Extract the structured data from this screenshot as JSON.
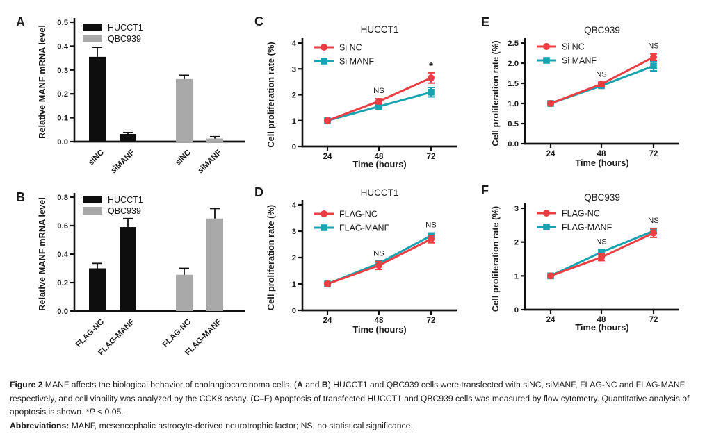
{
  "figure_label": "Figure 2",
  "chart_data": [
    {
      "id": "A",
      "panel_label": "A",
      "type": "bar",
      "ylabel": "Relative  MANF mRNA level",
      "ylim": [
        0,
        0.5
      ],
      "yticks": [
        "0.0",
        "0.1",
        "0.2",
        "0.3",
        "0.4",
        "0.5"
      ],
      "categories": [
        "siNC",
        "siMANF",
        "siNC",
        "siMANF"
      ],
      "legend": [
        {
          "label": "HUCCT1",
          "color": "#0e0e0e"
        },
        {
          "label": "QBC939",
          "color": "#a9a9a9"
        }
      ],
      "bars": [
        {
          "group": "HUCCT1",
          "category": "siNC",
          "value": 0.355,
          "error": 0.04,
          "color": "#0e0e0e"
        },
        {
          "group": "HUCCT1",
          "category": "siMANF",
          "value": 0.032,
          "error": 0.006,
          "color": "#0e0e0e"
        },
        {
          "group": "QBC939",
          "category": "siNC",
          "value": 0.262,
          "error": 0.016,
          "color": "#a9a9a9"
        },
        {
          "group": "QBC939",
          "category": "siMANF",
          "value": 0.013,
          "error": 0.008,
          "color": "#a9a9a9"
        }
      ]
    },
    {
      "id": "B",
      "panel_label": "B",
      "type": "bar",
      "ylabel": "Relative  MANF mRNA level",
      "ylim": [
        0,
        0.8
      ],
      "yticks": [
        "0.0",
        "0.2",
        "0.4",
        "0.6",
        "0.8"
      ],
      "categories": [
        "FLAG-NC",
        "FLAG-MANF",
        "FLAG-NC",
        "FLAG-MANF"
      ],
      "legend": [
        {
          "label": "HUCCT1",
          "color": "#0e0e0e"
        },
        {
          "label": "QBC939",
          "color": "#a9a9a9"
        }
      ],
      "bars": [
        {
          "group": "HUCCT1",
          "category": "FLAG-NC",
          "value": 0.3,
          "error": 0.035,
          "color": "#0e0e0e"
        },
        {
          "group": "HUCCT1",
          "category": "FLAG-MANF",
          "value": 0.59,
          "error": 0.06,
          "color": "#0e0e0e"
        },
        {
          "group": "QBC939",
          "category": "FLAG-NC",
          "value": 0.255,
          "error": 0.045,
          "color": "#a9a9a9"
        },
        {
          "group": "QBC939",
          "category": "FLAG-MANF",
          "value": 0.65,
          "error": 0.07,
          "color": "#a9a9a9"
        }
      ]
    },
    {
      "id": "C",
      "panel_label": "C",
      "type": "line",
      "title": "HUCCT1",
      "ylabel": "Cell proliferation rate (%)",
      "xlabel": "Time (hours)",
      "ylim": [
        0,
        4
      ],
      "yticks": [
        "0",
        "1",
        "2",
        "3",
        "4"
      ],
      "x": [
        24,
        48,
        72
      ],
      "series": [
        {
          "name": "Si NC",
          "color": "#ea3e43",
          "marker": "circle",
          "values": [
            1.0,
            1.75,
            2.65
          ],
          "errors": [
            0.03,
            0.1,
            0.2
          ]
        },
        {
          "name": "Si MANF",
          "color": "#17a3b0",
          "marker": "square",
          "values": [
            1.0,
            1.55,
            2.1
          ],
          "errors": [
            0.03,
            0.06,
            0.18
          ]
        }
      ],
      "annotations": [
        {
          "x_index": 1,
          "text": "NS"
        },
        {
          "x_index": 2,
          "text": "*"
        }
      ]
    },
    {
      "id": "D",
      "panel_label": "D",
      "type": "line",
      "title": "HUCCT1",
      "ylabel": "Cell proliferation rate (%)",
      "xlabel": "Time (hours)",
      "ylim": [
        0,
        4
      ],
      "yticks": [
        "0",
        "1",
        "2",
        "3",
        "4"
      ],
      "x": [
        24,
        48,
        72
      ],
      "series": [
        {
          "name": "FLAG-NC",
          "color": "#ea3e43",
          "marker": "circle",
          "values": [
            1.0,
            1.7,
            2.7
          ],
          "errors": [
            0.03,
            0.15,
            0.14
          ]
        },
        {
          "name": "FLAG-MANF",
          "color": "#17a3b0",
          "marker": "square",
          "values": [
            1.0,
            1.78,
            2.83
          ],
          "errors": [
            0.03,
            0.08,
            0.1
          ]
        }
      ],
      "annotations": [
        {
          "x_index": 1,
          "text": "NS"
        },
        {
          "x_index": 2,
          "text": "NS"
        }
      ]
    },
    {
      "id": "E",
      "panel_label": "E",
      "type": "line",
      "title": "QBC939",
      "ylabel": "Cell proliferation rate (%)",
      "xlabel": "Time (hours)",
      "ylim": [
        0,
        2.5
      ],
      "yticks": [
        "0.0",
        "0.5",
        "1.0",
        "1.5",
        "2.0",
        "2.5"
      ],
      "x": [
        24,
        48,
        72
      ],
      "series": [
        {
          "name": "Si NC",
          "color": "#ea3e43",
          "marker": "circle",
          "values": [
            1.0,
            1.48,
            2.15
          ],
          "errors": [
            0.02,
            0.05,
            0.08
          ]
        },
        {
          "name": "Si MANF",
          "color": "#17a3b0",
          "marker": "square",
          "values": [
            1.0,
            1.44,
            1.93
          ],
          "errors": [
            0.02,
            0.04,
            0.12
          ]
        }
      ],
      "annotations": [
        {
          "x_index": 1,
          "text": "NS"
        },
        {
          "x_index": 2,
          "text": "NS"
        }
      ]
    },
    {
      "id": "F",
      "panel_label": "F",
      "type": "line",
      "title": "QBC939",
      "ylabel": "Cell proliferation rate (%)",
      "xlabel": "Time (hours)",
      "ylim": [
        0,
        3
      ],
      "yticks": [
        "0",
        "1",
        "2",
        "3"
      ],
      "x": [
        24,
        48,
        72
      ],
      "series": [
        {
          "name": "FLAG-NC",
          "color": "#ea3e43",
          "marker": "circle",
          "values": [
            1.0,
            1.55,
            2.27
          ],
          "errors": [
            0.03,
            0.1,
            0.13
          ]
        },
        {
          "name": "FLAG-MANF",
          "color": "#17a3b0",
          "marker": "square",
          "values": [
            1.0,
            1.7,
            2.33
          ],
          "errors": [
            0.03,
            0.08,
            0.07
          ]
        }
      ],
      "annotations": [
        {
          "x_index": 1,
          "text": "NS"
        },
        {
          "x_index": 2,
          "text": "NS"
        }
      ]
    }
  ],
  "caption": {
    "paragraphs": [
      {
        "segments": [
          {
            "text": "Figure 2 ",
            "bold": true
          },
          {
            "text": "MANF affects the biological behavior of cholangiocarcinoma cells. ("
          },
          {
            "text": "A",
            "bold": true
          },
          {
            "text": " and "
          },
          {
            "text": "B",
            "bold": true
          },
          {
            "text": ") HUCCT1 and QBC939 cells were transfected with siNC, siMANF, FLAG-NC and FLAG-MANF, respectively, and cell viability was analyzed by the CCK8 assay. ("
          },
          {
            "text": "C–F",
            "bold": true
          },
          {
            "text": ") Apoptosis of transfected HUCCT1 and QBC939 cells was measured by flow cytometry. Quantitative analysis of apoptosis is shown. *"
          },
          {
            "text": "P",
            "italic": true
          },
          {
            "text": " < 0.05."
          }
        ]
      },
      {
        "segments": [
          {
            "text": "Abbreviations: ",
            "bold": true
          },
          {
            "text": "MANF, mesencephalic astrocyte-derived neurotrophic factor; NS, no statistical significance."
          }
        ]
      }
    ]
  },
  "colors": {
    "series_red": "#ea3e43",
    "series_teal": "#17a3b0",
    "bar_black": "#0e0e0e",
    "bar_gray": "#a9a9a9",
    "axis": "#111111"
  }
}
